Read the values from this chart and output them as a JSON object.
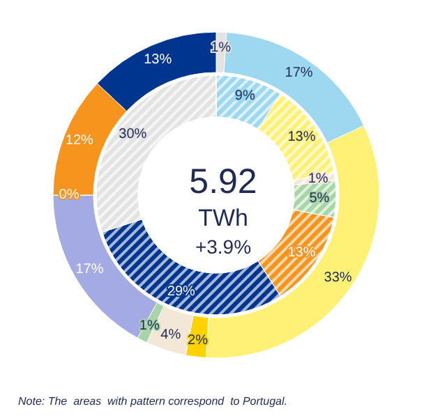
{
  "chart_data": {
    "type": "donut",
    "title": "5.92",
    "subtitle": "TWh",
    "annotations": [
      "+3.9%",
      "Note: The  areas  with pattern correspond  to Portugal."
    ],
    "data_labels": false,
    "series": [
      {
        "values": [
          1,
          17,
          33,
          2,
          4,
          1,
          17,
          0,
          12,
          13
        ],
        "value_labels": [
          "1%",
          "17%",
          "33%",
          "2%",
          "4%",
          "1%",
          "17%",
          "0%",
          "12%",
          "13%"
        ],
        "colors": [
          "#e3e3e3",
          "#9dd8f0",
          "#fff176",
          "#ffd200",
          "#f3e7d7",
          "#a8d5a8",
          "#a3aae4",
          "#f7941d",
          "#f7941d",
          "#00358f"
        ]
      },
      {
        "values": [
          9,
          13,
          1,
          5,
          13,
          29,
          30
        ],
        "value_labels": [
          "9%",
          "13%",
          "1%",
          "5%",
          "13%",
          "29%",
          "30%"
        ],
        "colors": [
          "#9dd8f0",
          "#fff176",
          "#f3e7d7",
          "#a8d5a8",
          "#f7941d",
          "#00358f",
          "#e3e3e3"
        ]
      }
    ]
  }
}
